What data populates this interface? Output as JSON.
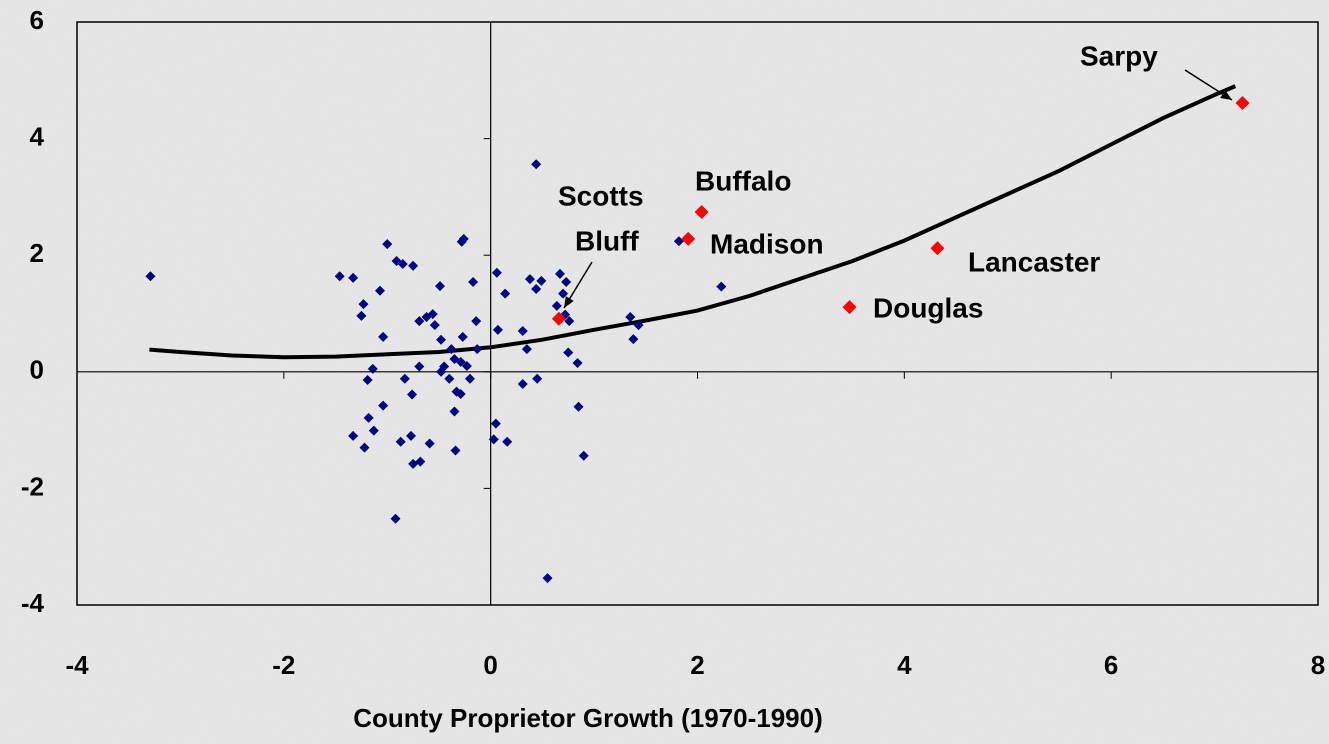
{
  "chart_data": {
    "type": "scatter",
    "xlabel": "County Proprietor Growth (1970-1990)",
    "xlim": [
      -4,
      8
    ],
    "xticks": [
      -4,
      -2,
      0,
      2,
      4,
      6,
      8
    ],
    "ylim": [
      -4,
      6
    ],
    "yticks": [
      -4,
      -2,
      0,
      2,
      4,
      6
    ],
    "grid": false,
    "series": [
      {
        "color": "#000080",
        "x": [
          -3.29,
          -1.46,
          -1.33,
          -1.0,
          -0.91,
          -0.85,
          -0.75,
          -1.07,
          -1.23,
          -1.25,
          -1.04,
          -0.69,
          -0.62,
          -0.56,
          -0.54,
          -0.48,
          -0.49,
          -0.28,
          -0.26,
          -0.17,
          -0.14,
          -0.27,
          -0.38,
          -0.35,
          -0.29,
          -0.23,
          -0.45,
          -0.48,
          -0.69,
          -1.14,
          -1.19,
          -0.83,
          -0.4,
          -0.2,
          -0.33,
          -0.29,
          -0.76,
          -1.04,
          -0.35,
          -1.18,
          -1.13,
          -1.33,
          -1.22,
          -0.87,
          -0.77,
          -0.59,
          -0.34,
          -0.75,
          -0.68,
          -0.92,
          0.06,
          0.14,
          0.07,
          -0.13,
          0.44,
          0.38,
          0.49,
          0.44,
          0.67,
          0.73,
          0.7,
          0.72,
          0.76,
          0.64,
          0.31,
          0.35,
          0.31,
          0.45,
          0.75,
          0.84,
          0.85,
          0.9,
          0.05,
          0.03,
          0.16,
          0.55,
          1.35,
          1.38,
          1.43,
          1.82,
          2.23
        ],
        "values": [
          1.64,
          1.64,
          1.61,
          2.19,
          1.9,
          1.85,
          1.82,
          1.39,
          1.16,
          0.96,
          0.6,
          0.87,
          0.94,
          0.99,
          0.8,
          0.55,
          1.47,
          2.23,
          2.28,
          1.54,
          0.87,
          0.6,
          0.39,
          0.22,
          0.17,
          0.1,
          0.09,
          0.0,
          0.09,
          0.05,
          -0.14,
          -0.12,
          -0.12,
          -0.12,
          -0.34,
          -0.38,
          -0.39,
          -0.58,
          -0.68,
          -0.79,
          -1.01,
          -1.1,
          -1.3,
          -1.2,
          -1.1,
          -1.23,
          -1.35,
          -1.58,
          -1.54,
          -2.52,
          1.7,
          1.34,
          0.72,
          0.39,
          3.56,
          1.59,
          1.56,
          1.42,
          1.68,
          1.54,
          1.34,
          0.98,
          0.87,
          1.13,
          0.7,
          0.39,
          -0.21,
          -0.12,
          0.33,
          0.15,
          -0.6,
          -1.44,
          -0.89,
          -1.16,
          -1.2,
          -3.54,
          0.94,
          0.56,
          0.8,
          2.24,
          1.46
        ]
      },
      {
        "color": "#ff0000",
        "x": [
          0.66,
          2.04,
          1.91,
          3.47,
          4.32,
          7.27
        ],
        "values": [
          0.91,
          2.74,
          2.28,
          1.11,
          2.12,
          4.61
        ]
      }
    ],
    "trend": {
      "color": "#000000",
      "x": [
        -3.3,
        -3,
        -2.5,
        -2,
        -1.5,
        -1,
        -0.5,
        0,
        0.5,
        1,
        1.5,
        2,
        2.5,
        3,
        3.5,
        4,
        4.5,
        5,
        5.5,
        6,
        6.5,
        7,
        7.2
      ],
      "values": [
        0.38,
        0.34,
        0.28,
        0.25,
        0.26,
        0.3,
        0.34,
        0.42,
        0.55,
        0.72,
        0.88,
        1.05,
        1.3,
        1.6,
        1.9,
        2.25,
        2.65,
        3.05,
        3.45,
        3.9,
        4.35,
        4.75,
        4.9
      ]
    },
    "annotations": [
      "Sarpy",
      "Buffalo",
      "Scotts",
      "Bluff",
      "Madison",
      "Lancaster",
      "Douglas"
    ]
  }
}
